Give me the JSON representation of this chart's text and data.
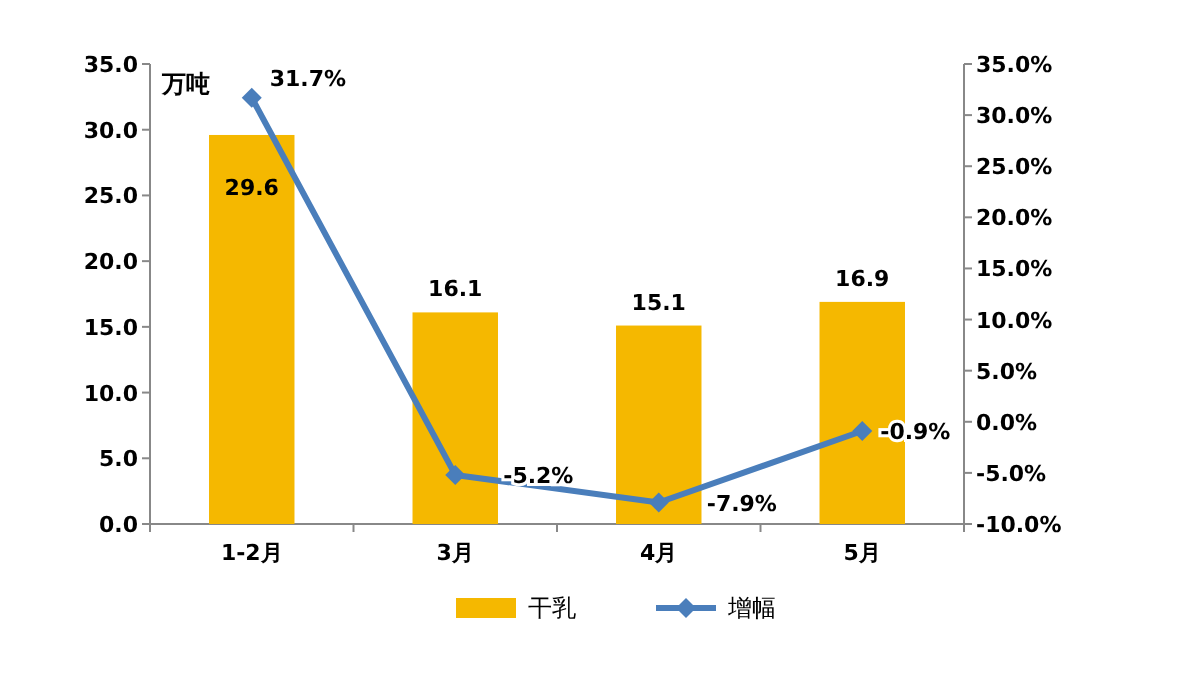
{
  "chart_data": {
    "type": "bar",
    "ylabel": "万吨",
    "categories": [
      "1-2月",
      "3月",
      "4月",
      "5月"
    ],
    "series": [
      {
        "name": "干乳",
        "color": "#f5b800",
        "values": [
          29.6,
          16.1,
          15.1,
          16.9
        ],
        "value_labels": [
          "29.6",
          "16.1",
          "15.1",
          "16.9"
        ]
      },
      {
        "name": "增幅",
        "type": "line",
        "axis": "y2",
        "color": "#4a7ebb",
        "marker": "diamond",
        "values": [
          31.7,
          -5.2,
          -7.9,
          -0.9
        ],
        "value_labels": [
          "31.7%",
          "-5.2%",
          "-7.9%",
          "-0.9%"
        ]
      }
    ],
    "ylim": [
      0,
      35
    ],
    "yticks": [
      {
        "value": 0,
        "label": "0.0"
      },
      {
        "value": 5,
        "label": "5.0"
      },
      {
        "value": 10,
        "label": "10.0"
      },
      {
        "value": 15,
        "label": "15.0"
      },
      {
        "value": 20,
        "label": "20.0"
      },
      {
        "value": 25,
        "label": "25.0"
      },
      {
        "value": 30,
        "label": "30.0"
      },
      {
        "value": 35,
        "label": "35.0"
      }
    ],
    "y2lim": [
      -10,
      35
    ],
    "y2ticks": [
      {
        "value": -10,
        "label": "-10.0%"
      },
      {
        "value": -5,
        "label": "-5.0%"
      },
      {
        "value": 0,
        "label": "0.0%"
      },
      {
        "value": 5,
        "label": "5.0%"
      },
      {
        "value": 10,
        "label": "10.0%"
      },
      {
        "value": 15,
        "label": "15.0%"
      },
      {
        "value": 20,
        "label": "20.0%"
      },
      {
        "value": 25,
        "label": "25.0%"
      },
      {
        "value": 30,
        "label": "30.0%"
      },
      {
        "value": 35,
        "label": "35.0%"
      }
    ],
    "legend": "bottom"
  }
}
